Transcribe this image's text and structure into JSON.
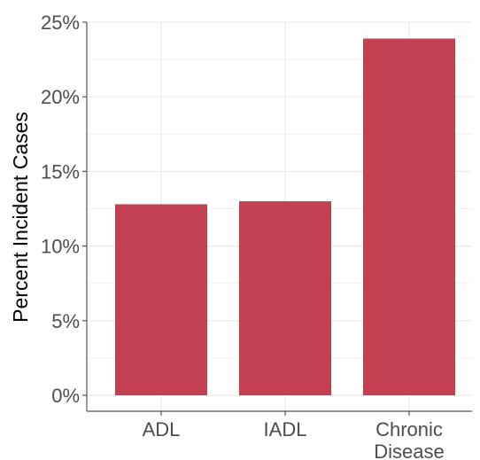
{
  "chart_data": {
    "type": "bar",
    "categories": [
      [
        "ADL"
      ],
      [
        "IADL"
      ],
      [
        "Chronic",
        "Disease"
      ]
    ],
    "values": [
      12.8,
      13.0,
      23.9
    ],
    "ylabel": "Percent Incident Cases",
    "xlabel": "",
    "ylim": [
      0,
      25
    ],
    "yticks": [
      0,
      5,
      10,
      15,
      20,
      25
    ],
    "ytick_suffix": "%",
    "grid": true,
    "bar_color": "#c2404f"
  }
}
